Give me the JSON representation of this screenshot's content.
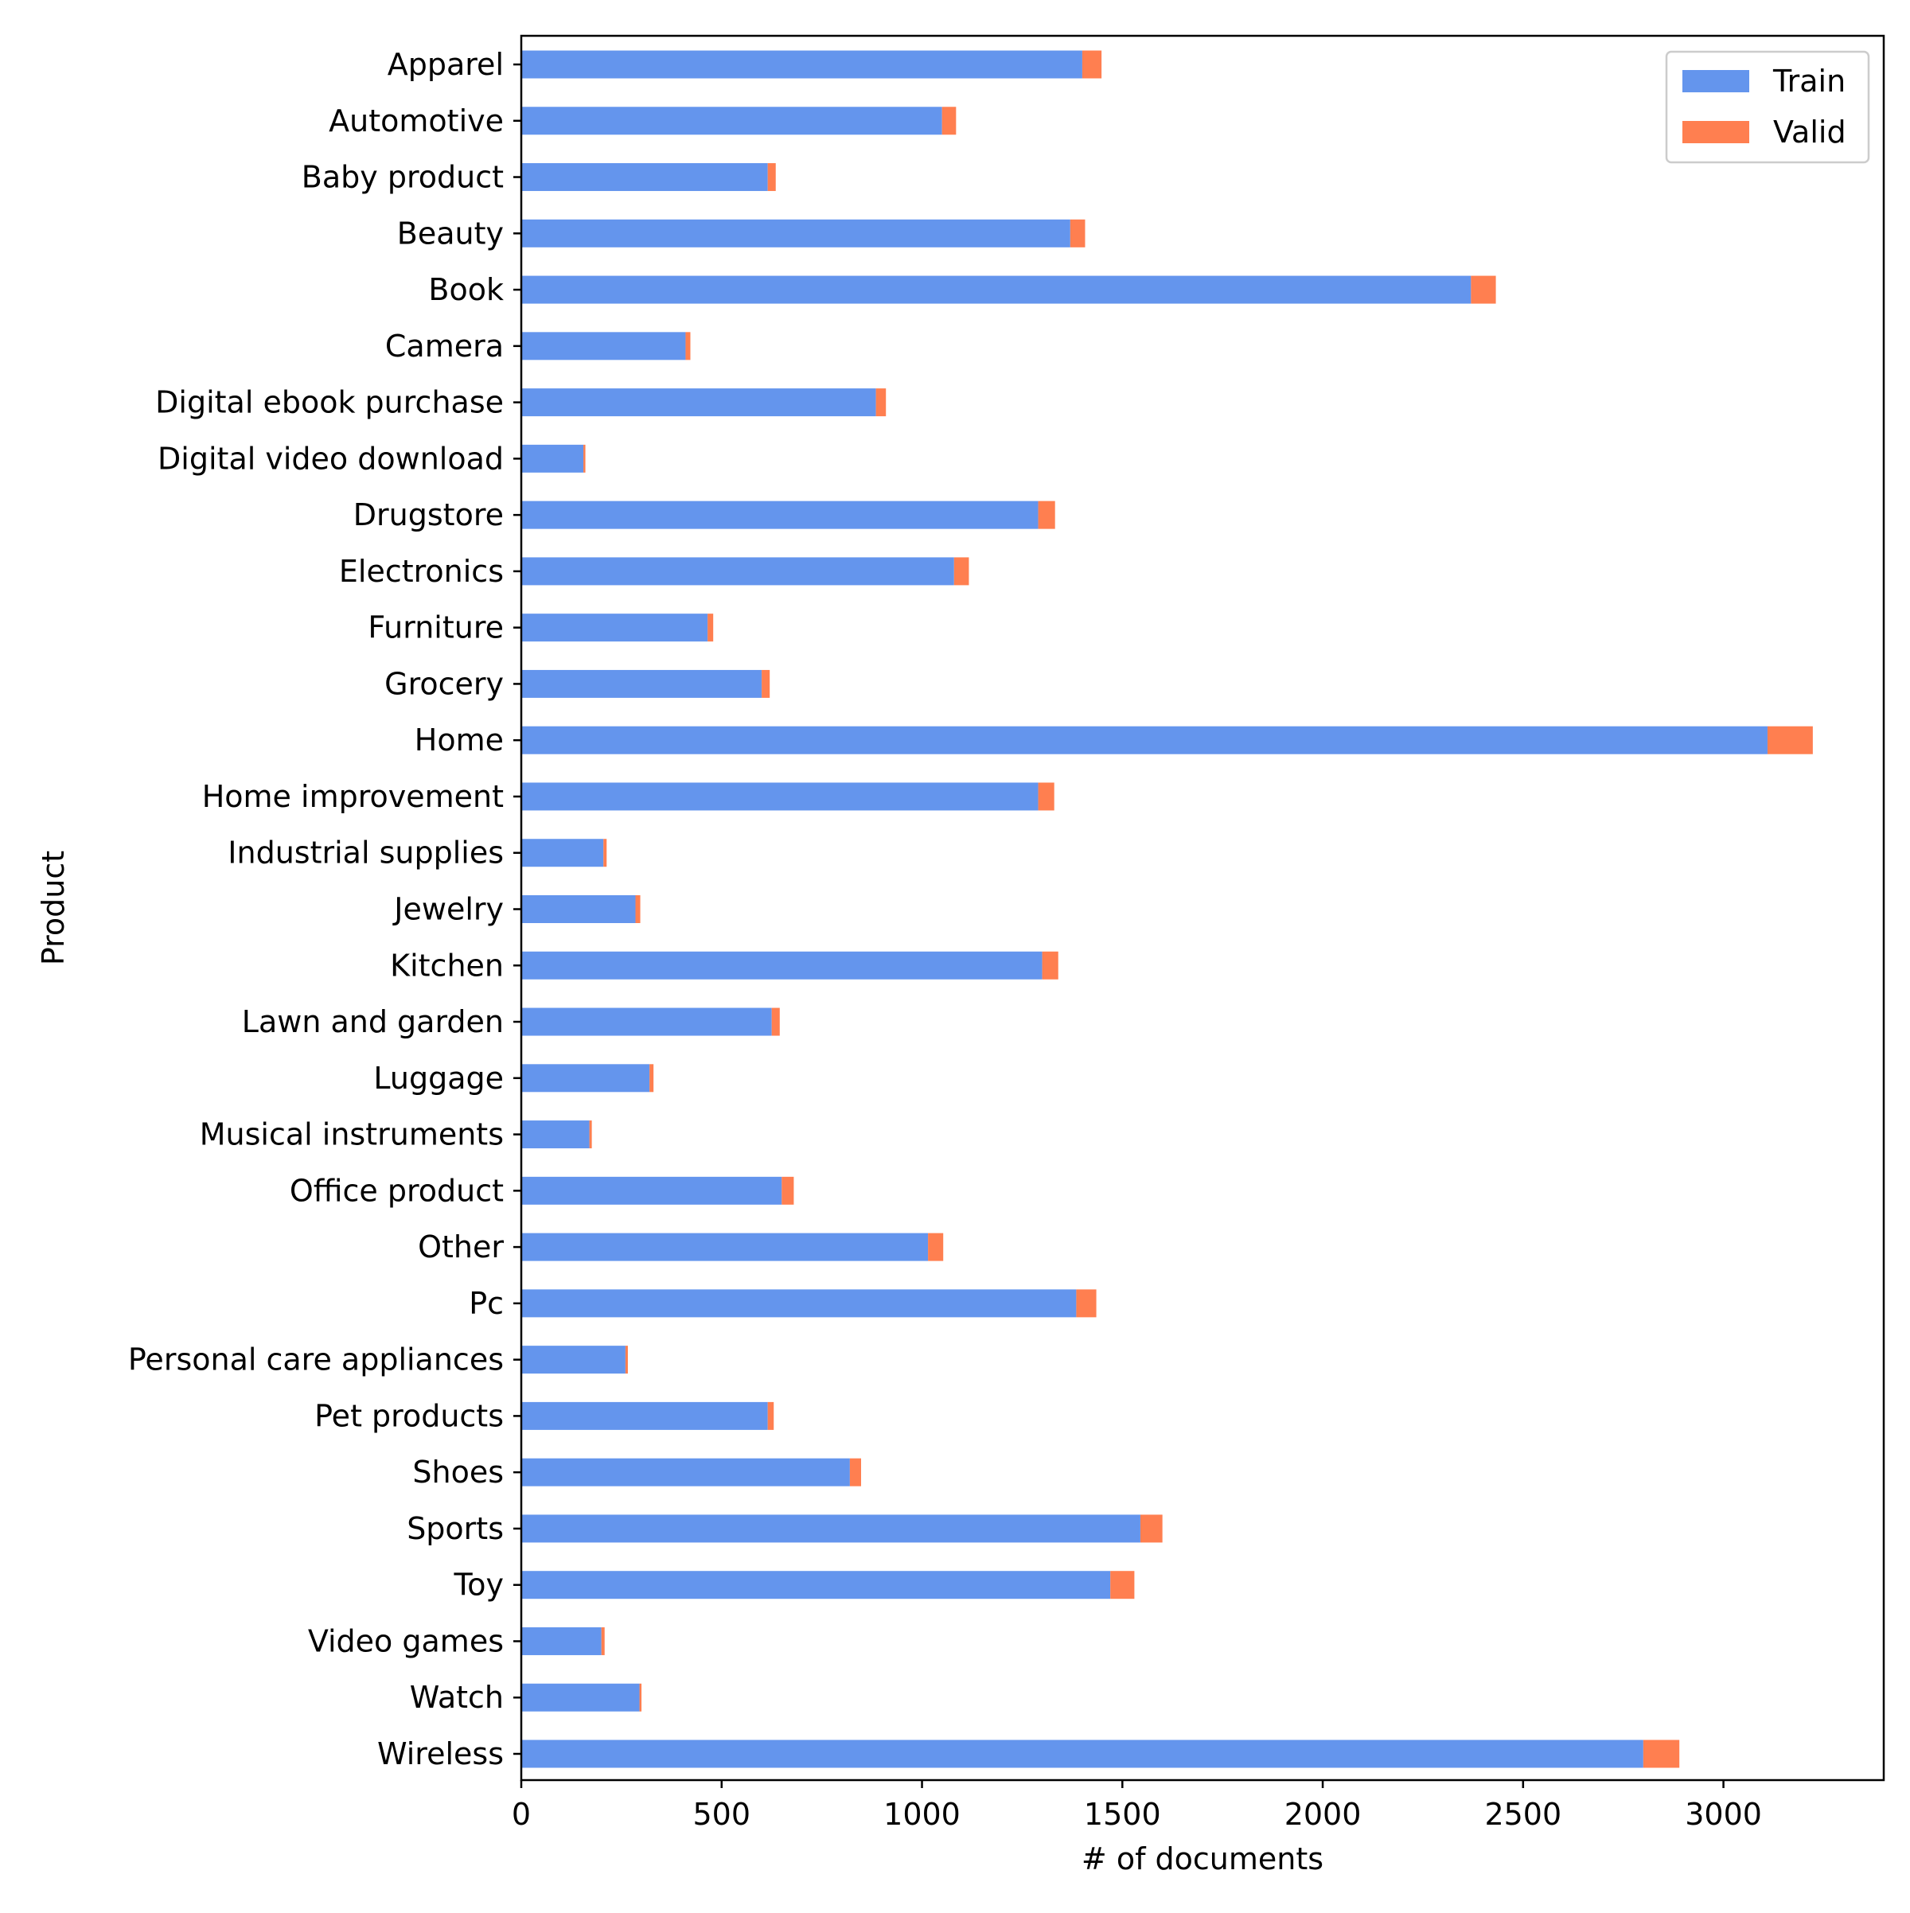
{
  "chart_data": {
    "type": "bar",
    "orientation": "horizontal",
    "stacked": true,
    "xlabel": "# of documents",
    "ylabel": "Product",
    "xlim": [
      0,
      3400
    ],
    "xticks": [
      0,
      500,
      1000,
      1500,
      2000,
      2500,
      3000
    ],
    "grid": false,
    "legend_position": "top-right",
    "categories": [
      "Apparel",
      "Automotive",
      "Baby product",
      "Beauty",
      "Book",
      "Camera",
      "Digital ebook purchase",
      "Digital video download",
      "Drugstore",
      "Electronics",
      "Furniture",
      "Grocery",
      "Home",
      "Home improvement",
      "Industrial supplies",
      "Jewelry",
      "Kitchen",
      "Lawn and garden",
      "Luggage",
      "Musical instruments",
      "Office product",
      "Other",
      "Pc",
      "Personal care appliances",
      "Pet products",
      "Shoes",
      "Sports",
      "Toy",
      "Video games",
      "Watch",
      "Wireless"
    ],
    "series": [
      {
        "name": "Train",
        "color": "#6495ED",
        "values": [
          1400,
          1050,
          615,
          1370,
          2370,
          410,
          885,
          155,
          1290,
          1080,
          465,
          600,
          3110,
          1290,
          205,
          285,
          1300,
          625,
          320,
          170,
          650,
          1015,
          1385,
          260,
          615,
          820,
          1545,
          1470,
          200,
          295,
          2800
        ]
      },
      {
        "name": "Valid",
        "color": "#FF7F50",
        "values": [
          48,
          35,
          20,
          37,
          62,
          12,
          25,
          5,
          42,
          37,
          14,
          20,
          113,
          40,
          8,
          12,
          40,
          20,
          10,
          6,
          30,
          38,
          50,
          6,
          15,
          28,
          55,
          60,
          8,
          5,
          90
        ]
      }
    ]
  }
}
